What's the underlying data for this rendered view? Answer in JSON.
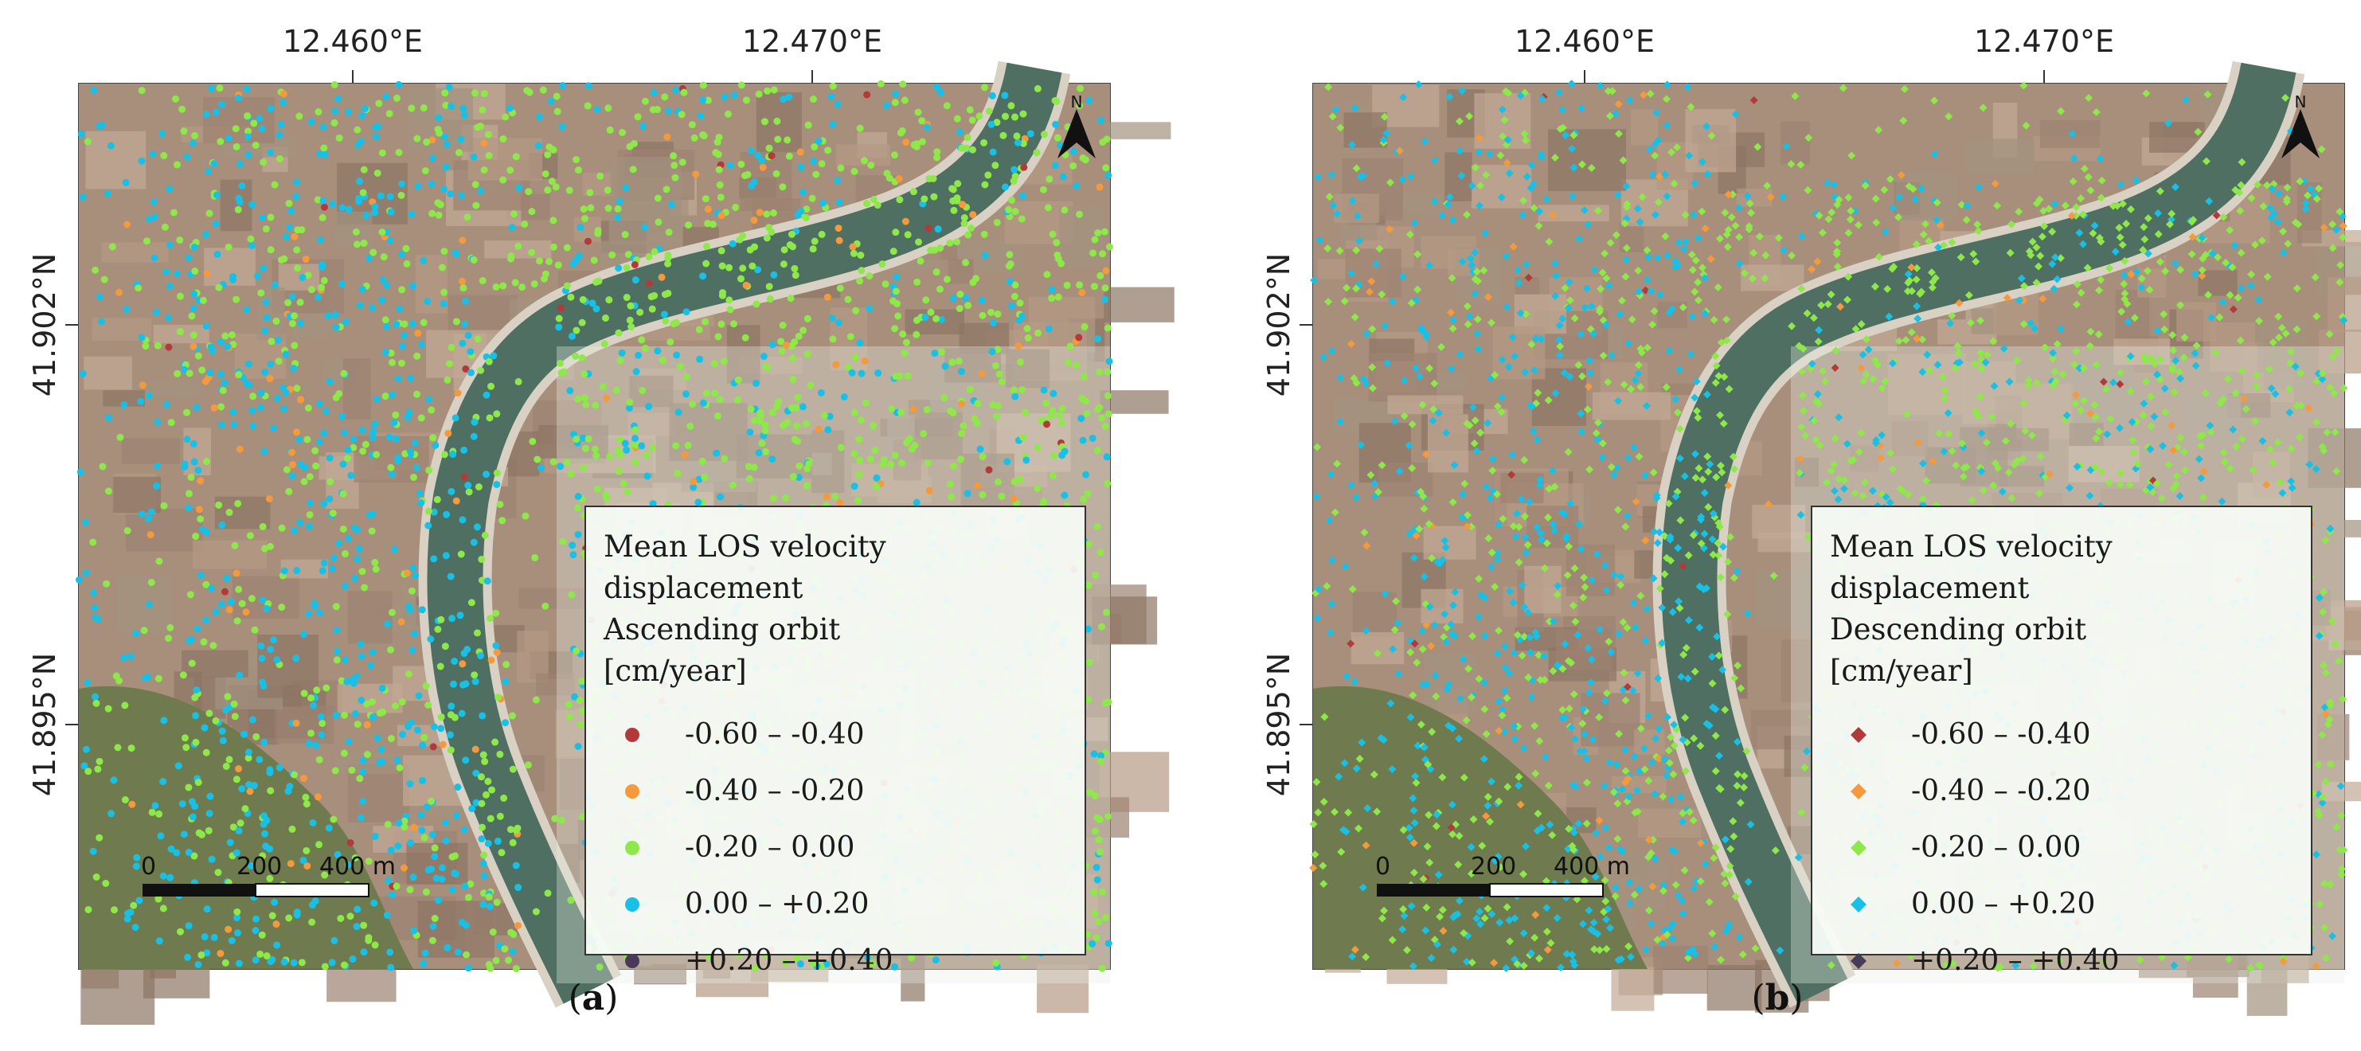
{
  "panels": [
    {
      "id": "a",
      "letter": "a",
      "lon_ticks": [
        "12.460°E",
        "12.470°E"
      ],
      "lat_ticks": [
        "41.902°N",
        "41.895°N"
      ],
      "legend": {
        "line1": "Mean LOS velocity displacement",
        "line2": "Ascending orbit",
        "line3": "[cm/year]",
        "symbol": "circle"
      },
      "scale": {
        "labels": [
          "0",
          "200",
          "400 m"
        ]
      }
    },
    {
      "id": "b",
      "letter": "b",
      "lon_ticks": [
        "12.460°E",
        "12.470°E"
      ],
      "lat_ticks": [
        "41.902°N",
        "41.895°N"
      ],
      "legend": {
        "line1": "Mean LOS velocity displacement",
        "line2": "Descending orbit",
        "line3": "[cm/year]",
        "symbol": "diamond"
      },
      "scale": {
        "labels": [
          "0",
          "200",
          "400 m"
        ]
      }
    }
  ],
  "legend_classes": [
    {
      "label": "-0.60 – -0.40",
      "color": "#b33a3a"
    },
    {
      "label": "-0.40 – -0.20",
      "color": "#f59a3c"
    },
    {
      "label": "-0.20 – 0.00",
      "color": "#8ee84a"
    },
    {
      "label": "0.00 – +0.20",
      "color": "#19c0e6"
    },
    {
      "label": "+0.20 – +0.40",
      "color": "#4a3a5a"
    }
  ],
  "map_colors": {
    "river": "#4e6f62",
    "urban": "#a88f7c",
    "vegetation": "#6f7b4e"
  },
  "north_label": "N"
}
